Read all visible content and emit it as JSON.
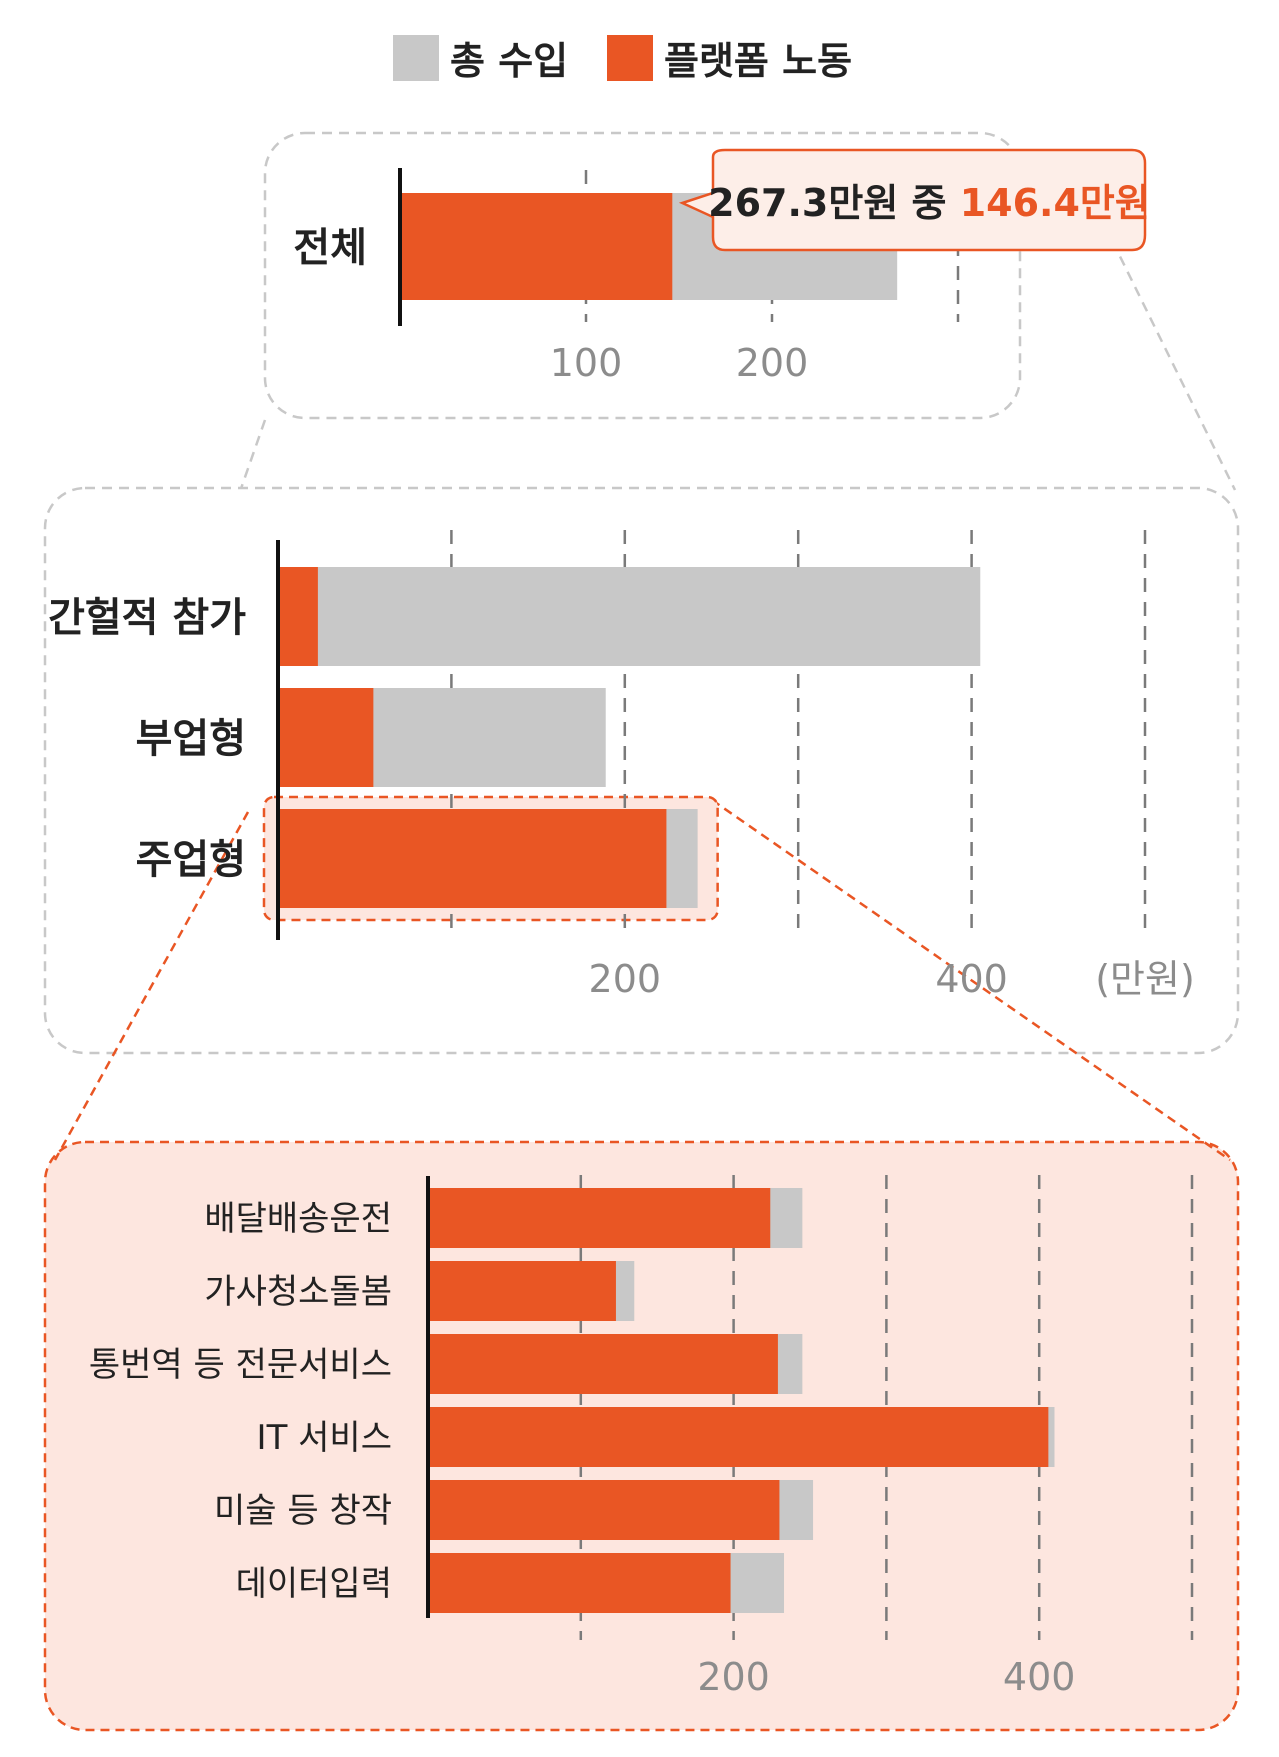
{
  "legend": {
    "items": [
      {
        "label": "총 수입",
        "color": "#c8c8c8"
      },
      {
        "label": "플랫폼 노동",
        "color": "#e95624"
      }
    ]
  },
  "colors": {
    "total": "#c8c8c8",
    "platform": "#e95624",
    "highlight_fill": "#fde6df",
    "frame_gray": "#c8c8c8",
    "frame_orange": "#e95624"
  },
  "chart_data": [
    {
      "type": "bar",
      "orientation": "horizontal",
      "categories": [
        "전체"
      ],
      "series": [
        {
          "name": "총 수입",
          "values": [
            267.3
          ]
        },
        {
          "name": "플랫폼 노동",
          "values": [
            146.4
          ]
        }
      ],
      "xticks": [
        100,
        200
      ],
      "xgrid": [
        100,
        200,
        300
      ],
      "xlim": [
        0,
        300
      ],
      "grid": true,
      "annotation": {
        "prefix": "267.3만원 중 ",
        "highlight": "146.4만원"
      }
    },
    {
      "type": "bar",
      "orientation": "horizontal",
      "categories": [
        "간헐적 참가",
        "부업형",
        "주업형"
      ],
      "series": [
        {
          "name": "총 수입",
          "values": [
            405,
            189,
            242
          ]
        },
        {
          "name": "플랫폼 노동",
          "values": [
            23,
            55,
            224
          ]
        }
      ],
      "xticks": [
        200,
        400
      ],
      "xgrid": [
        100,
        200,
        300,
        400,
        500
      ],
      "xlim": [
        0,
        500
      ],
      "unit": "(만원)",
      "grid": true
    },
    {
      "type": "bar",
      "orientation": "horizontal",
      "categories": [
        "배달배송운전",
        "가사청소돌봄",
        "통번역 등 전문서비스",
        "IT 서비스",
        "미술 등 창작",
        "데이터입력"
      ],
      "series": [
        {
          "name": "총 수입",
          "values": [
            245,
            135,
            245,
            410,
            252,
            233
          ]
        },
        {
          "name": "플랫폼 노동",
          "values": [
            224,
            123,
            229,
            406,
            230,
            198
          ]
        }
      ],
      "xticks": [
        200,
        400
      ],
      "xgrid": [
        100,
        200,
        300,
        400,
        500
      ],
      "xlim": [
        0,
        500
      ],
      "grid": true
    }
  ]
}
